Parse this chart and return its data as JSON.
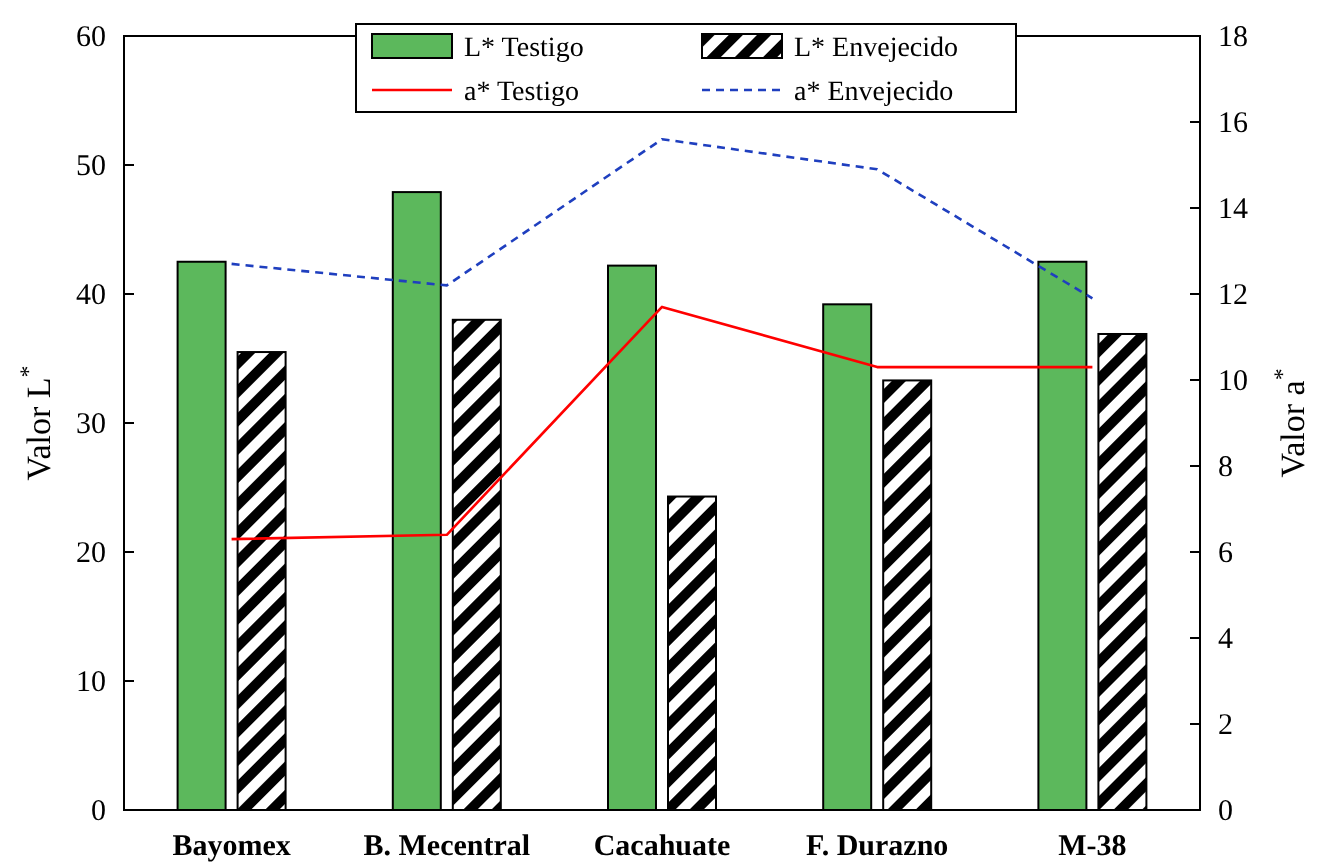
{
  "chart_data": {
    "type": "bar",
    "ylabel": "Valor L$^{*}$",
    "y2label": "Valor a$^{*}$",
    "categories": [
      "Bayomex",
      "B. Mecentral",
      "Cacahuate",
      "F. Durazno",
      "M-38"
    ],
    "series": [
      {
        "name": "L* Testigo",
        "color": "#5cb85c",
        "values": [
          42.5,
          47.9,
          42.2,
          39.2,
          42.5
        ]
      },
      {
        "name": "L* Envejecido",
        "color": "#000000",
        "values": [
          35.5,
          38.0,
          24.3,
          33.3,
          36.9
        ]
      },
      {
        "name": "a* Testigo",
        "type": "line",
        "axis": "y2",
        "color": "#ff0000",
        "line_style": "solid",
        "values": [
          6.3,
          6.4,
          11.7,
          10.3,
          10.3
        ]
      },
      {
        "name": "a* Envejecido",
        "type": "line",
        "axis": "y2",
        "color": "#1f3fbf",
        "line_style": "dashed",
        "values": [
          12.7,
          12.2,
          15.6,
          14.9,
          11.9
        ]
      }
    ],
    "ylim": [
      0,
      60
    ],
    "yticks": [
      0,
      10,
      20,
      30,
      40,
      50,
      60
    ],
    "y2lim": [
      0,
      18
    ],
    "y2ticks": [
      0,
      2,
      4,
      6,
      8,
      10,
      12,
      14,
      16,
      18
    ],
    "grid": false,
    "legend": "top",
    "marker": "none"
  }
}
